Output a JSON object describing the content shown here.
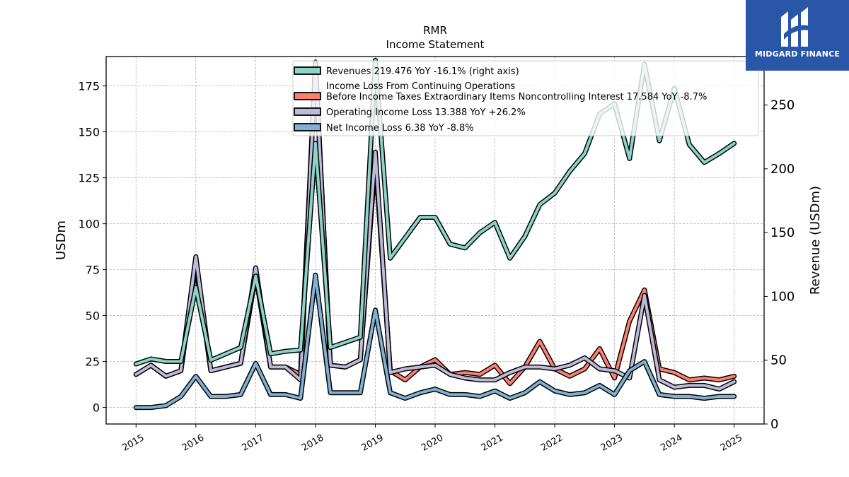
{
  "chart_data": {
    "type": "line",
    "title": "RMR",
    "subtitle": "Income Statement",
    "ylabel": "USDm",
    "ylabel_right": "Revenue (USDm)",
    "ylim": [
      -9,
      191
    ],
    "ylim_right": [
      0,
      288
    ],
    "yticks": [
      0,
      25,
      50,
      75,
      100,
      125,
      150,
      175
    ],
    "yticks_right": [
      0,
      50,
      100,
      150,
      200,
      250
    ],
    "xlim": [
      2014.5,
      2025.5
    ],
    "xticks": [
      "2015",
      "2016",
      "2017",
      "2018",
      "2019",
      "2020",
      "2021",
      "2022",
      "2023",
      "2024",
      "2025"
    ],
    "grid": true,
    "legend_position": "top-center",
    "x": [
      2015.0,
      2015.25,
      2015.5,
      2015.75,
      2016.0,
      2016.25,
      2016.5,
      2016.75,
      2017.0,
      2017.25,
      2017.5,
      2017.75,
      2018.0,
      2018.25,
      2018.5,
      2018.75,
      2019.0,
      2019.25,
      2019.5,
      2019.75,
      2020.0,
      2020.25,
      2020.5,
      2020.75,
      2021.0,
      2021.25,
      2021.5,
      2021.75,
      2022.0,
      2022.25,
      2022.5,
      2022.75,
      2023.0,
      2023.25,
      2023.5,
      2023.75,
      2024.0,
      2024.25,
      2024.5,
      2024.75,
      2025.0
    ],
    "series": [
      {
        "name": "Revenues",
        "legend": "Revenues  219.476 YoY -16.1% (right axis)",
        "axis": "right",
        "color": "#8dd3c7",
        "values": [
          47,
          51,
          49,
          49,
          107,
          50,
          55,
          60,
          116,
          55,
          57,
          58,
          220,
          60,
          64,
          68,
          285,
          130,
          146,
          162,
          162,
          141,
          138,
          150,
          158,
          130,
          147,
          172,
          181,
          198,
          212,
          243,
          251,
          208,
          282,
          222,
          263,
          219,
          205,
          212,
          220
        ]
      },
      {
        "name": "Income Loss From Continuing Operations Before Income Taxes Extraordinary Items Noncontrolling Interest",
        "legend": "Income Loss From Continuing Operations\nBefore Income Taxes Extraordinary Items Noncontrolling Interest  17.584 YoY -8.7%",
        "axis": "left",
        "color": "#fb8072",
        "values": [
          18,
          23,
          17,
          20,
          78,
          20,
          22,
          24,
          72,
          22,
          22,
          18,
          188,
          23,
          22,
          26,
          135,
          20,
          15,
          22,
          26,
          18,
          19,
          18,
          23,
          13,
          22,
          36,
          21,
          17,
          21,
          32,
          16,
          47,
          64,
          21,
          19,
          15,
          16,
          15,
          17
        ]
      },
      {
        "name": "Operating Income Loss",
        "legend": "Operating Income Loss  13.388 YoY +26.2%",
        "axis": "left",
        "color": "#bebada",
        "values": [
          18,
          23,
          17,
          20,
          82,
          20,
          22,
          24,
          76,
          22,
          22,
          15,
          187,
          23,
          22,
          26,
          139,
          19,
          21,
          22,
          23,
          18,
          16,
          15,
          15,
          19,
          22,
          22,
          21,
          23,
          27,
          21,
          20,
          16,
          61,
          15,
          11,
          12,
          12,
          10,
          14
        ]
      },
      {
        "name": "Net Income Loss",
        "legend": "Net Income Loss  6.38 YoY -8.8%",
        "axis": "left",
        "color": "#80b1d3",
        "values": [
          0,
          0,
          1,
          6,
          17,
          6,
          6,
          7,
          24,
          7,
          7,
          5,
          72,
          8,
          8,
          8,
          53,
          8,
          5,
          8,
          10,
          7,
          7,
          6,
          9,
          5,
          8,
          14,
          9,
          7,
          8,
          12,
          7,
          20,
          25,
          7,
          6,
          6,
          5,
          6,
          6
        ]
      }
    ]
  },
  "logo": {
    "text": "MIDGARD FINANCE",
    "background": "#2a56a8"
  }
}
